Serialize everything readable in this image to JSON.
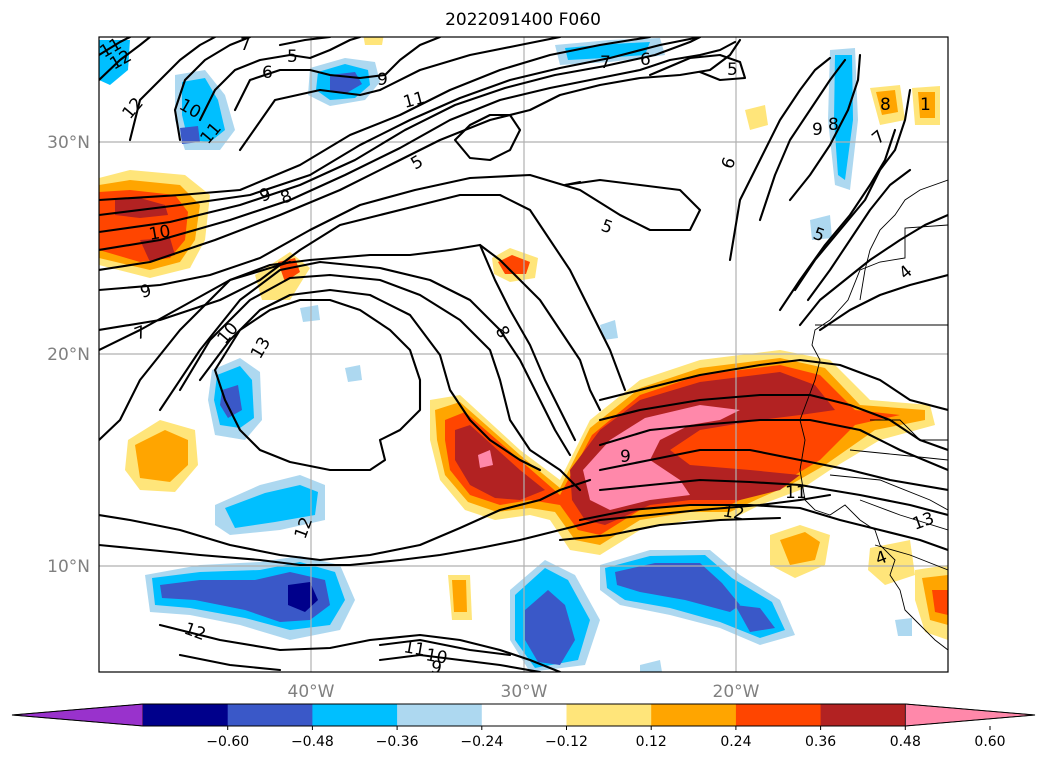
{
  "title": "2022091400 F060",
  "map": {
    "lat_ticks": [
      "30°N",
      "20°N",
      "10°N"
    ],
    "lon_ticks": [
      "40°W",
      "30°W",
      "20°W"
    ]
  },
  "colorbar": {
    "ticks": [
      "−0.60",
      "−0.48",
      "−0.36",
      "−0.24",
      "−0.12",
      "0.12",
      "0.24",
      "0.36",
      "0.48",
      "0.60"
    ],
    "colors": [
      "#9932cc",
      "#00008b",
      "#3a58c8",
      "#00bfff",
      "#add8f0",
      "#ffffff",
      "#ffe57a",
      "#ffa500",
      "#ff4500",
      "#b22222",
      "#ff88aa"
    ]
  },
  "contour_labels": [
    "11",
    "12",
    "7",
    "5",
    "6",
    "9",
    "10",
    "11",
    "12",
    "11",
    "5",
    "7",
    "6",
    "5",
    "6",
    "8",
    "1",
    "9",
    "8",
    "7",
    "9",
    "8",
    "10",
    "5",
    "5",
    "7",
    "9",
    "10",
    "13",
    "8",
    "4",
    "9",
    "12",
    "11",
    "12",
    "12",
    "11",
    "10",
    "9",
    "13",
    "4"
  ]
}
